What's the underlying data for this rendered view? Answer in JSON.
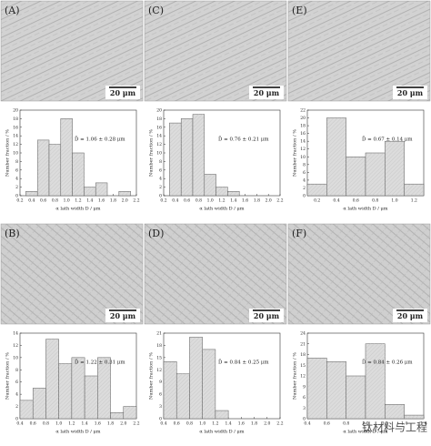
{
  "micrographs": [
    {
      "label": "(A)",
      "scale_bar": "20 μm"
    },
    {
      "label": "(B)",
      "scale_bar": "20 μm"
    },
    {
      "label": "(C)",
      "scale_bar": "20 μm"
    },
    {
      "label": "(D)",
      "scale_bar": "20 μm"
    },
    {
      "label": "(E)",
      "scale_bar": "20 μm"
    },
    {
      "label": "(F)",
      "scale_bar": "20 μm"
    }
  ],
  "watermark": "钛材料与工程",
  "chart_data": [
    {
      "type": "bar",
      "annotation": "D̄ = 1.06 ± 0.28 μm",
      "xlabel": "α lath width D / μm",
      "ylabel": "Number fraction / %",
      "color": "#dcdcdc",
      "x": [
        0.4,
        0.6,
        0.8,
        1.0,
        1.2,
        1.4,
        1.6,
        2.0
      ],
      "values": [
        1,
        13,
        12,
        18,
        10,
        2,
        3,
        1
      ],
      "xlim": [
        0.2,
        2.2
      ],
      "xticks": [
        0.2,
        0.4,
        0.6,
        0.8,
        {
          "value": 1,
          "label": "1.0"
        },
        1.2,
        1.4,
        1.6,
        1.8,
        {
          "value": 2,
          "label": "2.0"
        },
        2.2
      ],
      "ylim": [
        0,
        20
      ],
      "yticks": [
        0,
        2,
        4,
        6,
        8,
        10,
        12,
        14,
        16,
        18,
        20
      ]
    },
    {
      "type": "bar",
      "annotation": "D̄ = 1.22 ± 0.31 μm",
      "xlabel": "α lath width D / μm",
      "ylabel": "Number fraction / %",
      "color": "#dcdcdc",
      "x": [
        0.5,
        0.7,
        0.9,
        1.1,
        1.3,
        1.5,
        1.7,
        1.9,
        2.1
      ],
      "values": [
        3,
        5,
        13,
        9,
        10,
        7,
        10,
        1,
        2
      ],
      "xlim": [
        0.4,
        2.2
      ],
      "xticks": [
        0.4,
        0.6,
        0.8,
        {
          "value": 1,
          "label": "1.0"
        },
        1.2,
        1.4,
        1.6,
        1.8,
        {
          "value": 2,
          "label": "2.0"
        },
        2.2
      ],
      "ylim": [
        0,
        14
      ],
      "yticks": [
        0,
        2,
        4,
        6,
        8,
        10,
        12,
        14
      ]
    },
    {
      "type": "bar",
      "annotation": "D̄ = 0.76 ± 0.21 μm",
      "xlabel": "α lath width D / μm",
      "ylabel": "Number fraction / %",
      "color": "#dcdcdc",
      "x": [
        0.4,
        0.6,
        0.8,
        1.0,
        1.2,
        1.4
      ],
      "values": [
        17,
        18,
        19,
        5,
        2,
        1
      ],
      "xlim": [
        0.2,
        2.2
      ],
      "xticks": [
        0.2,
        0.4,
        0.6,
        0.8,
        {
          "value": 1,
          "label": "1.0"
        },
        1.2,
        1.4,
        1.6,
        1.8,
        {
          "value": 2,
          "label": "2.0"
        },
        2.2
      ],
      "ylim": [
        0,
        20
      ],
      "yticks": [
        0,
        2,
        4,
        6,
        8,
        10,
        12,
        14,
        16,
        18,
        20
      ]
    },
    {
      "type": "bar",
      "annotation": "D̄ = 0.84 ± 0.25 μm",
      "xlabel": "α lath width D / μm",
      "ylabel": "Number fraction / %",
      "color": "#dcdcdc",
      "x": [
        0.5,
        0.7,
        0.9,
        1.1,
        1.3
      ],
      "values": [
        14,
        11,
        20,
        17,
        2
      ],
      "xlim": [
        0.4,
        2.2
      ],
      "xticks": [
        0.4,
        0.6,
        0.8,
        {
          "value": 1,
          "label": "1.0"
        },
        1.2,
        1.4,
        1.6,
        1.8,
        {
          "value": 2,
          "label": "2.0"
        },
        2.2
      ],
      "ylim": [
        0,
        21
      ],
      "yticks": [
        0,
        3,
        6,
        9,
        12,
        15,
        18,
        21
      ]
    },
    {
      "type": "bar",
      "annotation": "D̄ = 0.67 ± 0.14 μm",
      "xlabel": "α lath width D / μm",
      "ylabel": "Number fraction / %",
      "color": "#dcdcdc",
      "x": [
        0.2,
        0.4,
        0.6,
        0.8,
        1.0,
        1.2
      ],
      "values": [
        3,
        20,
        10,
        11,
        14,
        3
      ],
      "xlim": [
        0.1,
        1.3
      ],
      "xticks": [
        0.2,
        0.4,
        0.6,
        0.8,
        {
          "value": 1,
          "label": "1.0"
        },
        1.2
      ],
      "ylim": [
        0,
        22
      ],
      "yticks": [
        0,
        2,
        4,
        6,
        8,
        10,
        12,
        14,
        16,
        18,
        20,
        22
      ]
    },
    {
      "type": "bar",
      "annotation": "D̄ = 0.84 ± 0.26 μm",
      "xlabel": "α lath width D / μm",
      "ylabel": "Number fraction / %",
      "color": "#dcdcdc",
      "x": [
        0.5,
        0.7,
        0.9,
        1.1,
        1.3,
        1.5
      ],
      "values": [
        17,
        16,
        12,
        21,
        4,
        1
      ],
      "xlim": [
        0.4,
        1.6
      ],
      "xticks": [
        0.4,
        0.6,
        0.8,
        {
          "value": 1,
          "label": "1.0"
        },
        1.2,
        1.4,
        1.6
      ],
      "ylim": [
        0,
        24
      ],
      "yticks": [
        0,
        3,
        6,
        9,
        12,
        15,
        18,
        21,
        24
      ]
    }
  ]
}
